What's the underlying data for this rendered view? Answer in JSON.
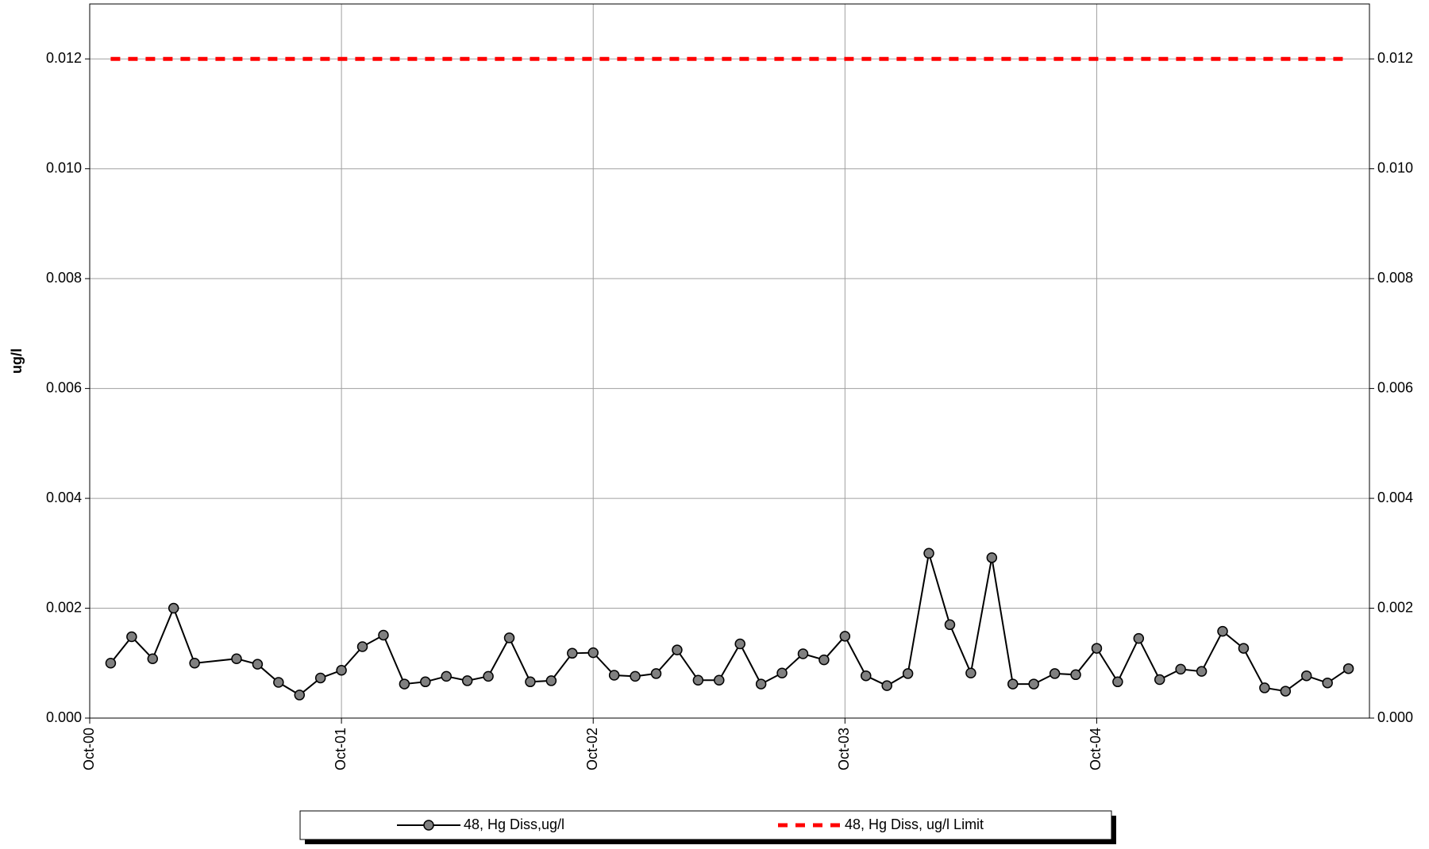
{
  "chart_data": {
    "type": "line",
    "y_label": "ug/l",
    "x": [
      "2000-11",
      "2000-12",
      "2001-01",
      "2001-02",
      "2001-03",
      "2001-05",
      "2001-06",
      "2001-07",
      "2001-08",
      "2001-09",
      "2001-10",
      "2001-11",
      "2001-12",
      "2002-01",
      "2002-02",
      "2002-03",
      "2002-04",
      "2002-05",
      "2002-06",
      "2002-07",
      "2002-08",
      "2002-09",
      "2002-10",
      "2002-11",
      "2002-12",
      "2003-01",
      "2003-02",
      "2003-03",
      "2003-04",
      "2003-05",
      "2003-06",
      "2003-07",
      "2003-08",
      "2003-09",
      "2003-10",
      "2003-11",
      "2003-12",
      "2004-01",
      "2004-02",
      "2004-03",
      "2004-04",
      "2004-05",
      "2004-06",
      "2004-07",
      "2004-08",
      "2004-09",
      "2004-10",
      "2004-11",
      "2004-12",
      "2005-01",
      "2005-02",
      "2005-03",
      "2005-04",
      "2005-05",
      "2005-06",
      "2005-07",
      "2005-08",
      "2005-09",
      "2005-10"
    ],
    "series": [
      {
        "name": "48, Hg Diss,ug/l",
        "color": "#000000",
        "marker_color": "#808080",
        "style": "solid",
        "values": [
          0.001,
          0.00148,
          0.00108,
          0.002,
          0.001,
          0.00108,
          0.00098,
          0.00065,
          0.00042,
          0.00073,
          0.00087,
          0.0013,
          0.00151,
          0.00062,
          0.00066,
          0.00076,
          0.00068,
          0.00076,
          0.00146,
          0.00066,
          0.00068,
          0.00118,
          0.00119,
          0.00078,
          0.00076,
          0.00081,
          0.00124,
          0.00069,
          0.00069,
          0.00135,
          0.00062,
          0.00082,
          0.00117,
          0.00106,
          0.00149,
          0.00077,
          0.00059,
          0.00081,
          0.003,
          0.0017,
          0.00082,
          0.00292,
          0.00062,
          0.00062,
          0.00081,
          0.00079,
          0.00127,
          0.00066,
          0.00145,
          0.0007,
          0.00089,
          0.00085,
          0.00158,
          0.00127,
          0.00055,
          0.00049,
          0.00077,
          0.00064,
          0.0009
        ]
      },
      {
        "name": "48, Hg Diss, ug/l Limit",
        "color": "#ff0000",
        "style": "dashed",
        "values": [
          0.012,
          0.012,
          0.012,
          0.012,
          0.012,
          0.012,
          0.012,
          0.012,
          0.012,
          0.012,
          0.012,
          0.012,
          0.012,
          0.012,
          0.012,
          0.012,
          0.012,
          0.012,
          0.012,
          0.012,
          0.012,
          0.012,
          0.012,
          0.012,
          0.012,
          0.012,
          0.012,
          0.012,
          0.012,
          0.012,
          0.012,
          0.012,
          0.012,
          0.012,
          0.012,
          0.012,
          0.012,
          0.012,
          0.012,
          0.012,
          0.012,
          0.012,
          0.012,
          0.012,
          0.012,
          0.012,
          0.012,
          0.012,
          0.012,
          0.012,
          0.012,
          0.012,
          0.012,
          0.012,
          0.012,
          0.012,
          0.012,
          0.012,
          0.012
        ]
      }
    ],
    "xlim": [
      "2000-10",
      "2005-11"
    ],
    "xticks": [
      {
        "value": "2000-10",
        "label": "Oct-00"
      },
      {
        "value": "2001-10",
        "label": "Oct-01"
      },
      {
        "value": "2002-10",
        "label": "Oct-02"
      },
      {
        "value": "2003-10",
        "label": "Oct-03"
      },
      {
        "value": "2004-10",
        "label": "Oct-04"
      }
    ],
    "ylim": [
      0,
      0.013
    ],
    "yticks": [
      {
        "value": 0,
        "label": "0.000"
      },
      {
        "value": 0.002,
        "label": "0.002"
      },
      {
        "value": 0.004,
        "label": "0.004"
      },
      {
        "value": 0.006,
        "label": "0.006"
      },
      {
        "value": 0.008,
        "label": "0.008"
      },
      {
        "value": 0.01,
        "label": "0.010"
      },
      {
        "value": 0.012,
        "label": "0.012"
      }
    ],
    "y2lim": [
      0,
      0.013
    ],
    "y2ticks": [
      {
        "value": 0,
        "label": "0.000"
      },
      {
        "value": 0.002,
        "label": "0.002"
      },
      {
        "value": 0.004,
        "label": "0.004"
      },
      {
        "value": 0.006,
        "label": "0.006"
      },
      {
        "value": 0.008,
        "label": "0.008"
      },
      {
        "value": 0.01,
        "label": "0.010"
      },
      {
        "value": 0.012,
        "label": "0.012"
      }
    ],
    "grid": true
  }
}
